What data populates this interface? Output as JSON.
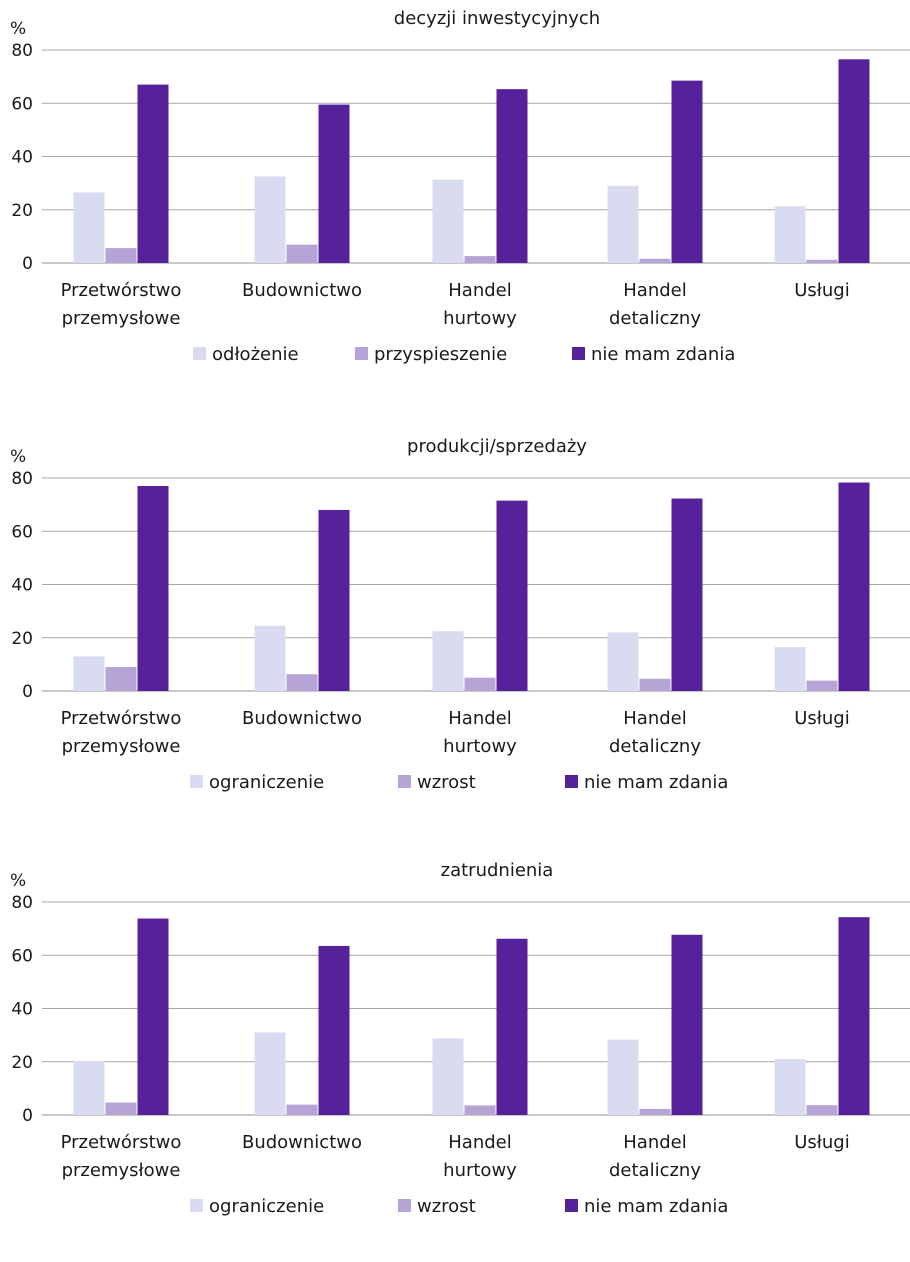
{
  "colors": {
    "series1": "#d9dcf0",
    "series2": "#b7a4d6",
    "series3": "#55229a",
    "grid": "#a6a6a6",
    "text": "#1a1a1a"
  },
  "chart_data": [
    {
      "type": "bar",
      "title": "decyzji inwestycyjnych",
      "ylabel": "%",
      "ylim": [
        0,
        80
      ],
      "yticks": [
        0,
        20,
        40,
        60,
        80
      ],
      "grid": true,
      "legend_position": "bottom",
      "categories": [
        [
          "Przetwórstwo",
          "przemysłowe"
        ],
        [
          "Budownictwo"
        ],
        [
          "Handel",
          "hurtowy"
        ],
        [
          "Handel",
          "detaliczny"
        ],
        [
          "Usługi"
        ]
      ],
      "series": [
        {
          "name": "odłożenie",
          "values": [
            26.5,
            32.5,
            31.3,
            29.0,
            21.3
          ]
        },
        {
          "name": "przyspieszenie",
          "values": [
            5.6,
            6.9,
            2.6,
            1.6,
            1.2
          ]
        },
        {
          "name": "nie mam zdania",
          "values": [
            67.0,
            59.5,
            65.3,
            68.5,
            76.5
          ]
        }
      ]
    },
    {
      "type": "bar",
      "title": "produkcji/sprzedaży",
      "ylabel": "%",
      "ylim": [
        0,
        80
      ],
      "yticks": [
        0,
        20,
        40,
        60,
        80
      ],
      "grid": true,
      "legend_position": "bottom",
      "categories": [
        [
          "Przetwórstwo",
          "przemysłowe"
        ],
        [
          "Budownictwo"
        ],
        [
          "Handel",
          "hurtowy"
        ],
        [
          "Handel",
          "detaliczny"
        ],
        [
          "Usługi"
        ]
      ],
      "series": [
        {
          "name": "ograniczenie",
          "values": [
            13.0,
            24.5,
            22.5,
            22.0,
            16.5
          ]
        },
        {
          "name": "wzrost",
          "values": [
            9.0,
            6.3,
            5.0,
            4.6,
            3.9
          ]
        },
        {
          "name": "nie mam zdania",
          "values": [
            77.0,
            68.0,
            71.5,
            72.3,
            78.3
          ]
        }
      ]
    },
    {
      "type": "bar",
      "title": "zatrudnienia",
      "ylabel": "%",
      "ylim": [
        0,
        80
      ],
      "yticks": [
        0,
        20,
        40,
        60,
        80
      ],
      "grid": true,
      "legend_position": "bottom",
      "categories": [
        [
          "Przetwórstwo",
          "przemysłowe"
        ],
        [
          "Budownictwo"
        ],
        [
          "Handel",
          "hurtowy"
        ],
        [
          "Handel",
          "detaliczny"
        ],
        [
          "Usługi"
        ]
      ],
      "series": [
        {
          "name": "ograniczenie",
          "values": [
            20.3,
            31.0,
            28.8,
            28.3,
            21.0
          ]
        },
        {
          "name": "wzrost",
          "values": [
            4.7,
            3.9,
            3.6,
            2.3,
            3.7
          ]
        },
        {
          "name": "nie mam zdania",
          "values": [
            73.8,
            63.5,
            66.2,
            67.7,
            74.3
          ]
        }
      ]
    }
  ]
}
